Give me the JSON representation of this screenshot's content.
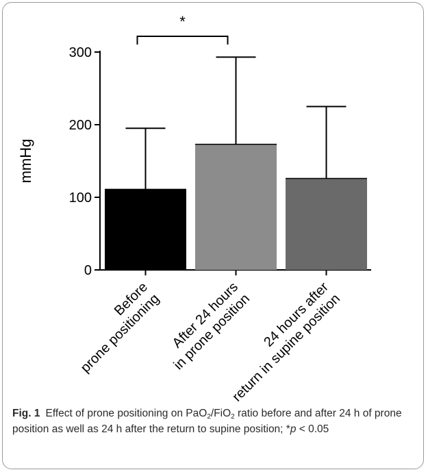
{
  "chart_data": {
    "type": "bar",
    "categories": [
      [
        "Before",
        "prone positioning"
      ],
      [
        "After 24 hours",
        "in  prone position"
      ],
      [
        "24 hours after",
        "return in supine position"
      ]
    ],
    "values": [
      111,
      173,
      126
    ],
    "error_upper": [
      195,
      293,
      225
    ],
    "colors": [
      "#000000",
      "#8c8c8c",
      "#6a6a6a"
    ],
    "ylabel": "mmHg",
    "ylim": [
      0,
      300
    ],
    "yticks": [
      0,
      100,
      200,
      300
    ],
    "significance": {
      "from": 0,
      "to": 1,
      "label": "*"
    }
  },
  "caption": {
    "label": "Fig. 1",
    "text_a": "Effect of prone positioning on PaO",
    "sub_1": "2",
    "text_b": "/FiO",
    "sub_2": "2",
    "text_c": " ratio before and after 24 h of prone position as well as 24 h after the return to supine position; *",
    "p_symbol": "p",
    "text_d": " < 0.05"
  }
}
